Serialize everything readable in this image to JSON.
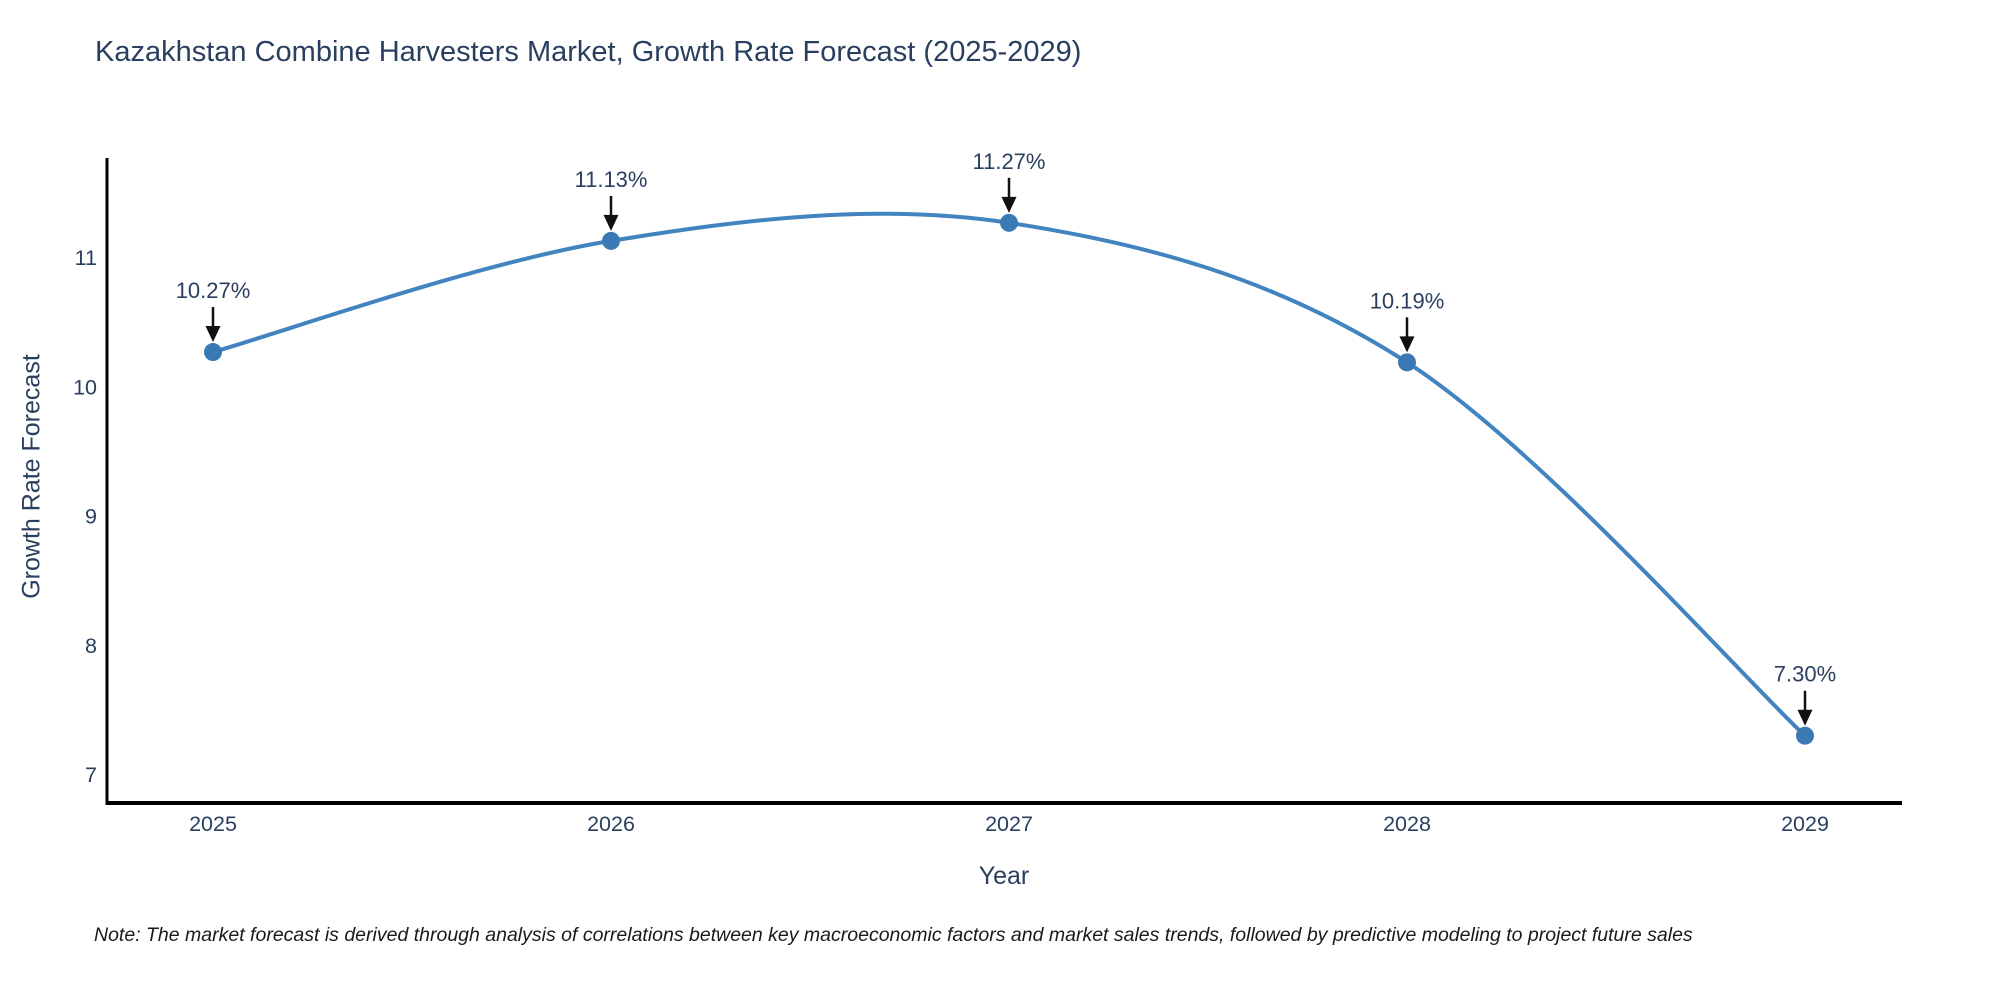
{
  "chart_data": {
    "type": "line",
    "title": "Kazakhstan Combine Harvesters Market, Growth Rate Forecast (2025-2029)",
    "xlabel": "Year",
    "ylabel": "Growth Rate Forecast",
    "categories": [
      "2025",
      "2026",
      "2027",
      "2028",
      "2029"
    ],
    "series": [
      {
        "name": "Growth Rate Forecast",
        "values": [
          10.27,
          11.13,
          11.27,
          10.19,
          7.3
        ]
      }
    ],
    "data_labels": [
      "10.27%",
      "11.13%",
      "11.27%",
      "10.19%",
      "7.30%"
    ],
    "yticks": [
      7,
      8,
      9,
      10,
      11
    ],
    "ylim": [
      6.79,
      11.77
    ],
    "grid": false,
    "legend": "none",
    "line_shape": "spline",
    "footnote": "Note: The market forecast is derived through analysis of correlations between key macroeconomic factors and market sales trends, followed by predictive modeling to project future sales",
    "colors": {
      "line": "#4184c0",
      "marker": "#3b79b5",
      "axis_line": "#000000",
      "text": "#2a3f5f",
      "annotation_arrow": "#111111",
      "background": "#ffffff"
    }
  }
}
